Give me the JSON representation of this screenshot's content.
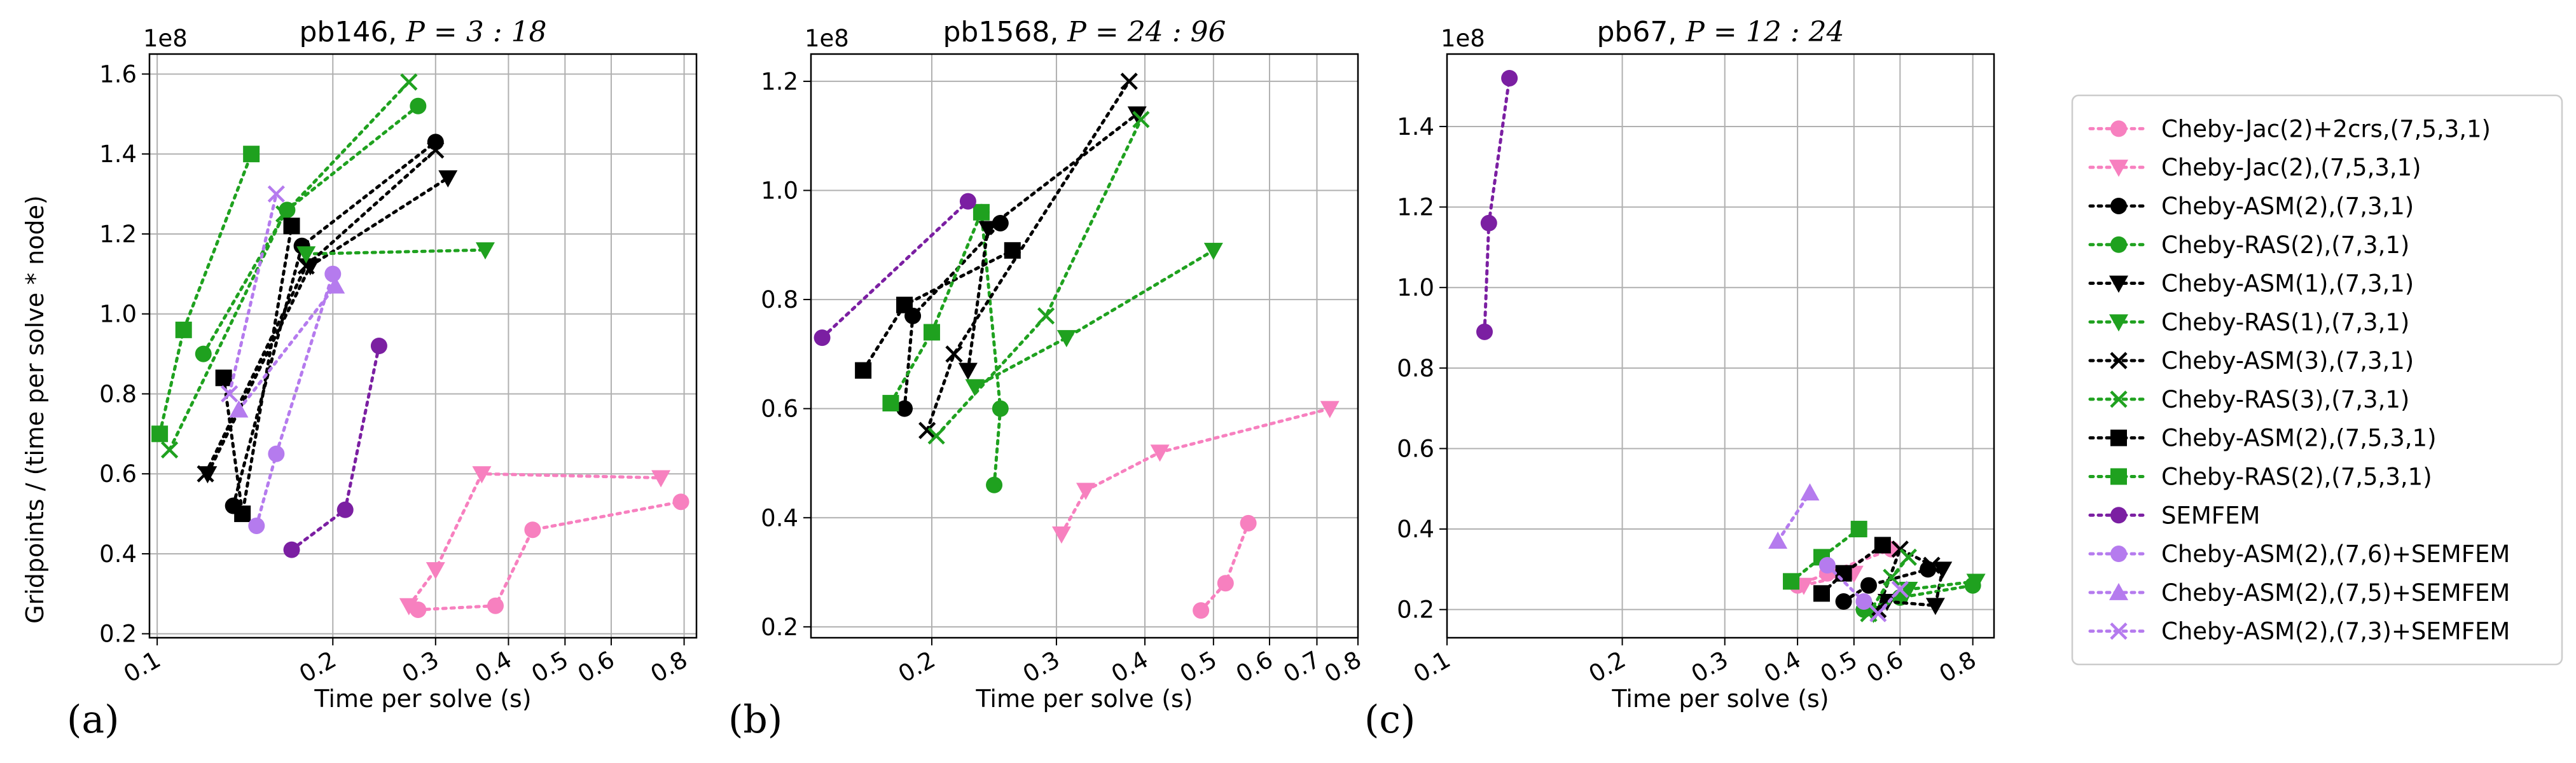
{
  "figure": {
    "shared_ylabel": "Gridpoints / (time per solve * node)"
  },
  "styles": {
    "Cheby-Jac(2)+2crs,(7,5,3,1)": {
      "color": "#f780bf",
      "marker": "o"
    },
    "Cheby-Jac(2),(7,5,3,1)": {
      "color": "#f780bf",
      "marker": "v"
    },
    "Cheby-ASM(2),(7,3,1)": {
      "color": "#000000",
      "marker": "o"
    },
    "Cheby-RAS(2),(7,3,1)": {
      "color": "#1fa11f",
      "marker": "o"
    },
    "Cheby-ASM(1),(7,3,1)": {
      "color": "#000000",
      "marker": "v"
    },
    "Cheby-RAS(1),(7,3,1)": {
      "color": "#1fa11f",
      "marker": "v"
    },
    "Cheby-ASM(3),(7,3,1)": {
      "color": "#000000",
      "marker": "x"
    },
    "Cheby-RAS(3),(7,3,1)": {
      "color": "#1fa11f",
      "marker": "x"
    },
    "Cheby-ASM(2),(7,5,3,1)": {
      "color": "#000000",
      "marker": "s"
    },
    "Cheby-RAS(2),(7,5,3,1)": {
      "color": "#1fa11f",
      "marker": "s"
    },
    "SEMFEM": {
      "color": "#7b1fa2",
      "marker": "o"
    },
    "Cheby-ASM(2),(7,6)+SEMFEM": {
      "color": "#b57bee",
      "marker": "o"
    },
    "Cheby-ASM(2),(7,5)+SEMFEM": {
      "color": "#b57bee",
      "marker": "^"
    },
    "Cheby-ASM(2),(7,3)+SEMFEM": {
      "color": "#b57bee",
      "marker": "x"
    }
  },
  "legend": {
    "placement": "right",
    "entries": [
      "Cheby-Jac(2)+2crs,(7,5,3,1)",
      "Cheby-Jac(2),(7,5,3,1)",
      "Cheby-ASM(2),(7,3,1)",
      "Cheby-RAS(2),(7,3,1)",
      "Cheby-ASM(1),(7,3,1)",
      "Cheby-RAS(1),(7,3,1)",
      "Cheby-ASM(3),(7,3,1)",
      "Cheby-RAS(3),(7,3,1)",
      "Cheby-ASM(2),(7,5,3,1)",
      "Cheby-RAS(2),(7,5,3,1)",
      "SEMFEM",
      "Cheby-ASM(2),(7,6)+SEMFEM",
      "Cheby-ASM(2),(7,5)+SEMFEM",
      "Cheby-ASM(2),(7,3)+SEMFEM"
    ]
  },
  "chart_data": [
    {
      "type": "line",
      "title_prefix": "pb146, ",
      "title_math": "P = 3 : 18",
      "panel_label": "(a)",
      "xlabel": "Time per solve (s)",
      "ylabel": "Gridpoints / (time per solve * node)",
      "xscale": "log",
      "xlim": [
        0.097,
        0.84
      ],
      "ylim": [
        0.19,
        1.65
      ],
      "yexponent": "1e8",
      "xticks": [
        0.1,
        0.2,
        0.3,
        0.4,
        0.5,
        0.6,
        0.8
      ],
      "xticklabels": [
        "0.1",
        "0.2",
        "0.3",
        "0.4",
        "0.5",
        "0.6",
        "0.8"
      ],
      "yticks": [
        0.2,
        0.4,
        0.6,
        0.8,
        1.0,
        1.2,
        1.4,
        1.6
      ],
      "yticklabels": [
        "0.2",
        "0.4",
        "0.6",
        "0.8",
        "1.0",
        "1.2",
        "1.4",
        "1.6"
      ],
      "grid": true,
      "series": [
        {
          "name": "Cheby-Jac(2)+2crs,(7,5,3,1)",
          "x": [
            0.28,
            0.38,
            0.44,
            0.79
          ],
          "y": [
            0.26,
            0.27,
            0.46,
            0.53
          ]
        },
        {
          "name": "Cheby-Jac(2),(7,5,3,1)",
          "x": [
            0.27,
            0.3,
            0.36,
            0.73
          ],
          "y": [
            0.27,
            0.36,
            0.6,
            0.59
          ]
        },
        {
          "name": "Cheby-ASM(2),(7,3,1)",
          "x": [
            0.135,
            0.177,
            0.3
          ],
          "y": [
            0.52,
            1.17,
            1.43
          ]
        },
        {
          "name": "Cheby-RAS(2),(7,3,1)",
          "x": [
            0.12,
            0.167,
            0.28
          ],
          "y": [
            0.9,
            1.26,
            1.52
          ]
        },
        {
          "name": "Cheby-ASM(1),(7,3,1)",
          "x": [
            0.122,
            0.183,
            0.315
          ],
          "y": [
            0.6,
            1.12,
            1.34
          ]
        },
        {
          "name": "Cheby-RAS(1),(7,3,1)",
          "x": [
            0.18,
            0.365
          ],
          "y": [
            1.15,
            1.16
          ]
        },
        {
          "name": "Cheby-ASM(3),(7,3,1)",
          "x": [
            0.121,
            0.18,
            0.3
          ],
          "y": [
            0.6,
            1.12,
            1.41
          ]
        },
        {
          "name": "Cheby-RAS(3),(7,3,1)",
          "x": [
            0.105,
            0.165,
            0.27
          ],
          "y": [
            0.66,
            1.25,
            1.58
          ]
        },
        {
          "name": "Cheby-ASM(2),(7,5,3,1)",
          "x": [
            0.13,
            0.14,
            0.17
          ],
          "y": [
            0.84,
            0.5,
            1.22
          ]
        },
        {
          "name": "Cheby-RAS(2),(7,5,3,1)",
          "x": [
            0.101,
            0.111,
            0.145
          ],
          "y": [
            0.7,
            0.96,
            1.4
          ]
        },
        {
          "name": "SEMFEM",
          "x": [
            0.17,
            0.21,
            0.24
          ],
          "y": [
            0.41,
            0.51,
            0.92
          ]
        },
        {
          "name": "Cheby-ASM(2),(7,6)+SEMFEM",
          "x": [
            0.148,
            0.16,
            0.2
          ],
          "y": [
            0.47,
            0.65,
            1.1
          ]
        },
        {
          "name": "Cheby-ASM(2),(7,5)+SEMFEM",
          "x": [
            0.138,
            0.202
          ],
          "y": [
            0.76,
            1.07
          ]
        },
        {
          "name": "Cheby-ASM(2),(7,3)+SEMFEM",
          "x": [
            0.133,
            0.16
          ],
          "y": [
            0.8,
            1.3
          ]
        }
      ]
    },
    {
      "type": "line",
      "title_prefix": "pb1568, ",
      "title_math": "P = 24 : 96",
      "panel_label": "(b)",
      "xlabel": "Time per solve (s)",
      "ylabel": "",
      "xscale": "log",
      "xlim": [
        0.135,
        0.8
      ],
      "ylim": [
        0.18,
        1.25
      ],
      "yexponent": "1e8",
      "xticks": [
        0.2,
        0.3,
        0.4,
        0.5,
        0.6,
        0.7,
        0.8
      ],
      "xticklabels": [
        "0.2",
        "0.3",
        "0.4",
        "0.5",
        "0.6",
        "0.7",
        "0.8"
      ],
      "yticks": [
        0.2,
        0.4,
        0.6,
        0.8,
        1.0,
        1.2
      ],
      "yticklabels": [
        "0.2",
        "0.4",
        "0.6",
        "0.8",
        "1.0",
        "1.2"
      ],
      "grid": true,
      "series": [
        {
          "name": "Cheby-Jac(2)+2crs,(7,5,3,1)",
          "x": [
            0.48,
            0.52,
            0.56
          ],
          "y": [
            0.23,
            0.28,
            0.39
          ]
        },
        {
          "name": "Cheby-Jac(2),(7,5,3,1)",
          "x": [
            0.305,
            0.33,
            0.42,
            0.73
          ],
          "y": [
            0.37,
            0.45,
            0.52,
            0.6
          ]
        },
        {
          "name": "Cheby-ASM(2),(7,3,1)",
          "x": [
            0.183,
            0.188,
            0.25
          ],
          "y": [
            0.6,
            0.77,
            0.94
          ]
        },
        {
          "name": "Cheby-RAS(2),(7,3,1)",
          "x": [
            0.245,
            0.25,
            0.235
          ],
          "y": [
            0.46,
            0.6,
            0.96
          ]
        },
        {
          "name": "Cheby-ASM(1),(7,3,1)",
          "x": [
            0.225,
            0.24,
            0.39
          ],
          "y": [
            0.67,
            0.93,
            1.14
          ]
        },
        {
          "name": "Cheby-RAS(1),(7,3,1)",
          "x": [
            0.23,
            0.31,
            0.5
          ],
          "y": [
            0.64,
            0.73,
            0.89
          ]
        },
        {
          "name": "Cheby-ASM(3),(7,3,1)",
          "x": [
            0.197,
            0.215,
            0.38
          ],
          "y": [
            0.56,
            0.7,
            1.2
          ]
        },
        {
          "name": "Cheby-RAS(3),(7,3,1)",
          "x": [
            0.203,
            0.29,
            0.395
          ],
          "y": [
            0.55,
            0.77,
            1.13
          ]
        },
        {
          "name": "Cheby-ASM(2),(7,5,3,1)",
          "x": [
            0.16,
            0.183,
            0.26
          ],
          "y": [
            0.67,
            0.79,
            0.89
          ]
        },
        {
          "name": "Cheby-RAS(2),(7,5,3,1)",
          "x": [
            0.175,
            0.2,
            0.235
          ],
          "y": [
            0.61,
            0.74,
            0.96
          ]
        },
        {
          "name": "SEMFEM",
          "x": [
            0.14,
            0.225
          ],
          "y": [
            0.73,
            0.98
          ]
        },
        {
          "name": "Cheby-ASM(2),(7,6)+SEMFEM",
          "x": [],
          "y": []
        },
        {
          "name": "Cheby-ASM(2),(7,5)+SEMFEM",
          "x": [],
          "y": []
        },
        {
          "name": "Cheby-ASM(2),(7,3)+SEMFEM",
          "x": [],
          "y": []
        }
      ]
    },
    {
      "type": "line",
      "title_prefix": "pb67, ",
      "title_math": "P = 12 : 24",
      "panel_label": "(c)",
      "xlabel": "Time per solve (s)",
      "ylabel": "",
      "xscale": "log",
      "xlim": [
        0.1,
        0.87
      ],
      "ylim": [
        0.13,
        1.58
      ],
      "yexponent": "1e8",
      "xticks": [
        0.1,
        0.2,
        0.3,
        0.4,
        0.5,
        0.6,
        0.8
      ],
      "xticklabels": [
        "0.1",
        "0.2",
        "0.3",
        "0.4",
        "0.5",
        "0.6",
        "0.8"
      ],
      "yticks": [
        0.2,
        0.4,
        0.6,
        0.8,
        1.0,
        1.2,
        1.4
      ],
      "yticklabels": [
        "0.2",
        "0.4",
        "0.6",
        "0.8",
        "1.0",
        "1.2",
        "1.4"
      ],
      "grid": true,
      "series": [
        {
          "name": "Cheby-Jac(2)+2crs,(7,5,3,1)",
          "x": [
            0.4,
            0.45,
            0.58
          ],
          "y": [
            0.26,
            0.29,
            0.35
          ]
        },
        {
          "name": "Cheby-Jac(2),(7,5,3,1)",
          "x": [
            0.41,
            0.5
          ],
          "y": [
            0.26,
            0.29
          ]
        },
        {
          "name": "Cheby-ASM(2),(7,3,1)",
          "x": [
            0.48,
            0.53,
            0.67
          ],
          "y": [
            0.22,
            0.26,
            0.3
          ]
        },
        {
          "name": "Cheby-RAS(2),(7,3,1)",
          "x": [
            0.52,
            0.6,
            0.8
          ],
          "y": [
            0.2,
            0.23,
            0.26
          ]
        },
        {
          "name": "Cheby-ASM(1),(7,3,1)",
          "x": [
            0.57,
            0.69,
            0.71
          ],
          "y": [
            0.22,
            0.21,
            0.3
          ]
        },
        {
          "name": "Cheby-RAS(1),(7,3,1)",
          "x": [
            0.54,
            0.62,
            0.81
          ],
          "y": [
            0.19,
            0.25,
            0.27
          ]
        },
        {
          "name": "Cheby-ASM(3),(7,3,1)",
          "x": [
            0.55,
            0.6,
            0.68
          ],
          "y": [
            0.2,
            0.35,
            0.31
          ]
        },
        {
          "name": "Cheby-RAS(3),(7,3,1)",
          "x": [
            0.53,
            0.58,
            0.62
          ],
          "y": [
            0.19,
            0.28,
            0.33
          ]
        },
        {
          "name": "Cheby-ASM(2),(7,5,3,1)",
          "x": [
            0.44,
            0.48,
            0.56
          ],
          "y": [
            0.24,
            0.29,
            0.36
          ]
        },
        {
          "name": "Cheby-RAS(2),(7,5,3,1)",
          "x": [
            0.39,
            0.44,
            0.51
          ],
          "y": [
            0.27,
            0.33,
            0.4
          ]
        },
        {
          "name": "SEMFEM",
          "x": [
            0.116,
            0.118,
            0.128
          ],
          "y": [
            0.89,
            1.16,
            1.52
          ]
        },
        {
          "name": "Cheby-ASM(2),(7,6)+SEMFEM",
          "x": [
            0.45,
            0.52
          ],
          "y": [
            0.31,
            0.22
          ]
        },
        {
          "name": "Cheby-ASM(2),(7,5)+SEMFEM",
          "x": [
            0.37,
            0.42
          ],
          "y": [
            0.37,
            0.49
          ]
        },
        {
          "name": "Cheby-ASM(2),(7,3)+SEMFEM",
          "x": [
            0.55,
            0.6
          ],
          "y": [
            0.19,
            0.25
          ]
        }
      ]
    }
  ]
}
